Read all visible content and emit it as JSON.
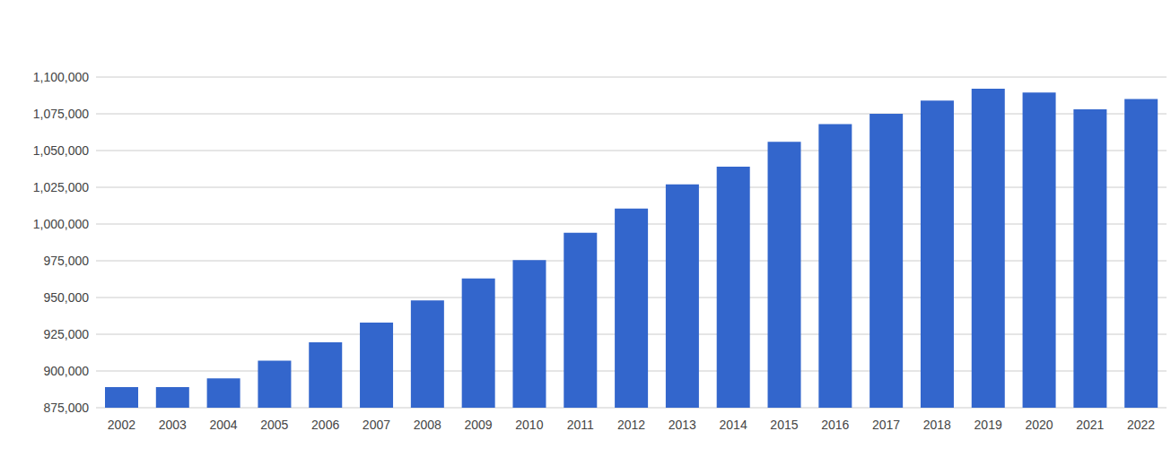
{
  "chart_data": {
    "type": "bar",
    "categories": [
      "2002",
      "2003",
      "2004",
      "2005",
      "2006",
      "2007",
      "2008",
      "2009",
      "2010",
      "2011",
      "2012",
      "2013",
      "2014",
      "2015",
      "2016",
      "2017",
      "2018",
      "2019",
      "2020",
      "2021",
      "2022"
    ],
    "values": [
      889000,
      889000,
      895000,
      907000,
      919500,
      933000,
      948000,
      963000,
      975500,
      994000,
      1010500,
      1027000,
      1039000,
      1056000,
      1068000,
      1075000,
      1084000,
      1092000,
      1089500,
      1078000,
      1085000
    ],
    "color": "#3366cc",
    "ylim": [
      875000,
      1100000
    ],
    "yticks": [
      {
        "value": 875000,
        "label": "875,000"
      },
      {
        "value": 900000,
        "label": "900,000"
      },
      {
        "value": 925000,
        "label": "925,000"
      },
      {
        "value": 950000,
        "label": "950,000"
      },
      {
        "value": 975000,
        "label": "975,000"
      },
      {
        "value": 1000000,
        "label": "1,000,000"
      },
      {
        "value": 1025000,
        "label": "1,025,000"
      },
      {
        "value": 1050000,
        "label": "1,050,000"
      },
      {
        "value": 1075000,
        "label": "1,075,000"
      },
      {
        "value": 1100000,
        "label": "1,100,000"
      }
    ],
    "grid": true
  }
}
